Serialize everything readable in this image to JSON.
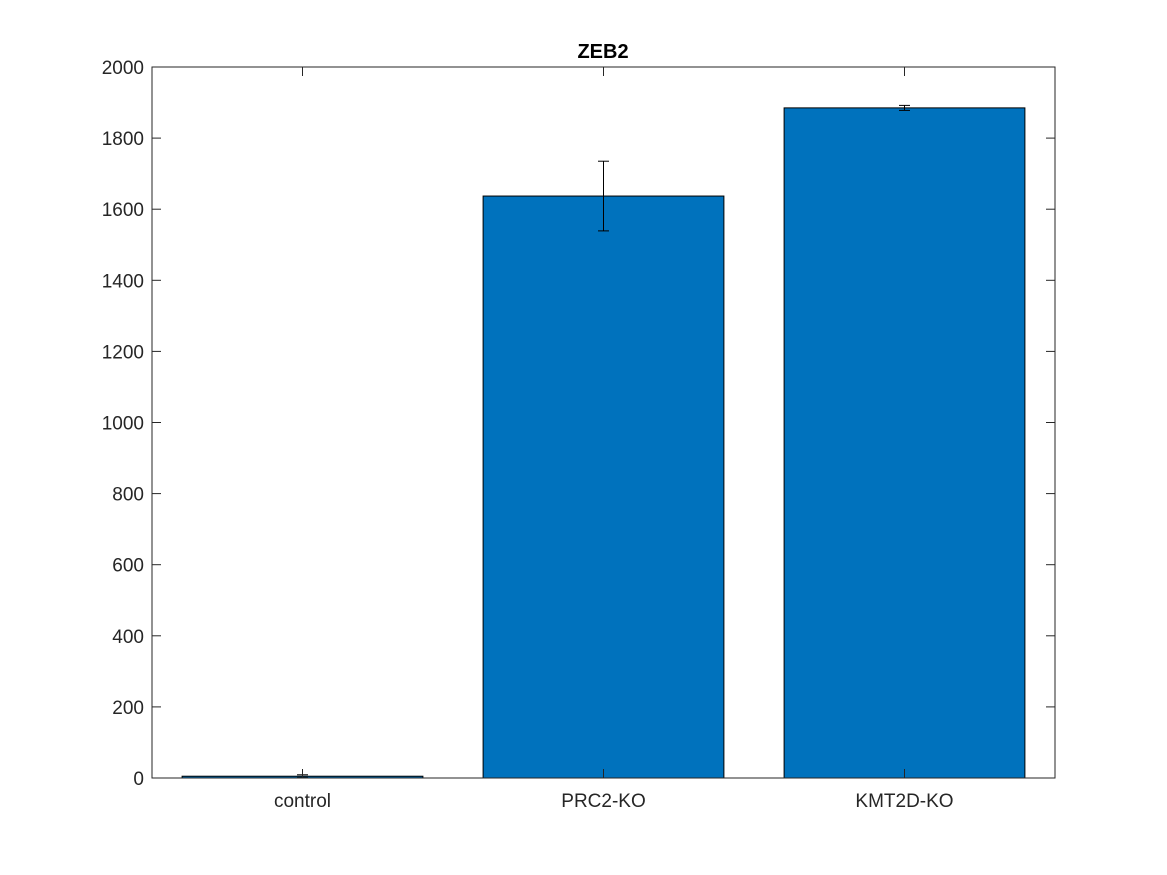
{
  "chart_data": {
    "type": "bar",
    "title": "ZEB2",
    "xlabel": "",
    "ylabel": "",
    "categories": [
      "control",
      "PRC2-KO",
      "KMT2D-KO"
    ],
    "values": [
      5,
      1637,
      1885
    ],
    "errors": [
      4,
      98,
      7
    ],
    "ylim": [
      0,
      2000
    ],
    "yticks": [
      0,
      200,
      400,
      600,
      800,
      1000,
      1200,
      1400,
      1600,
      1800,
      2000
    ],
    "grid": false,
    "legend": "none",
    "bar_color": "#0072bd",
    "edge_color": "#000000"
  }
}
